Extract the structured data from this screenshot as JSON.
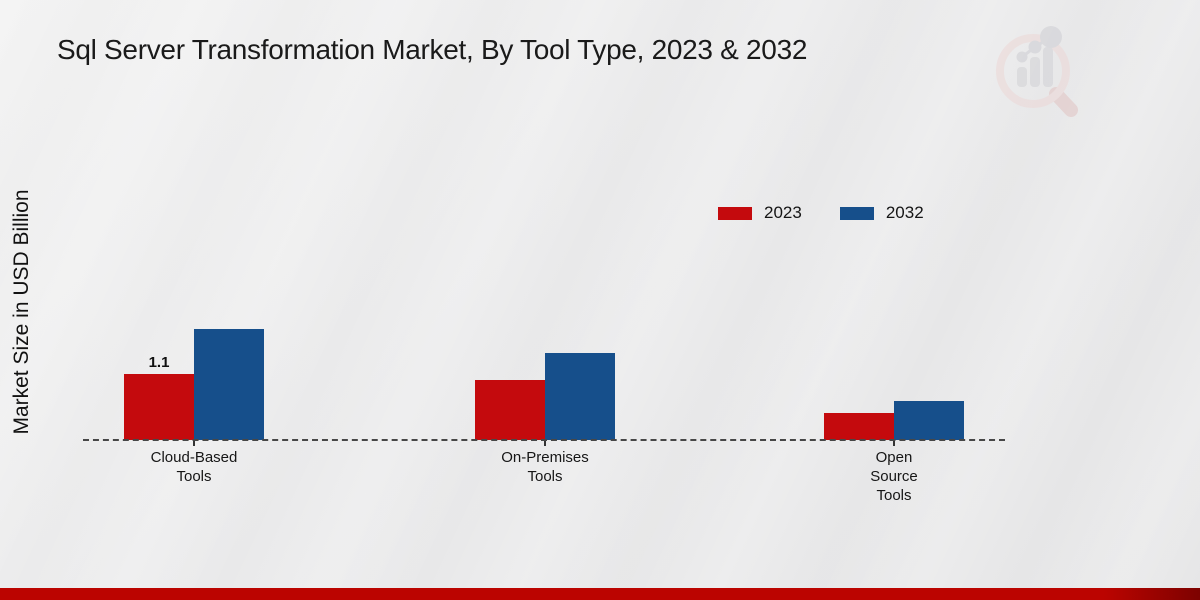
{
  "title": "Sql Server Transformation Market, By Tool Type, 2023 & 2032",
  "ylabel": "Market Size in USD Billion",
  "watermark": "magnifier-bar-chart-logo",
  "colors": {
    "series_2023": "#c40a0d",
    "series_2032": "#164f8b",
    "bottom_strip": "#bb0400",
    "bottom_strip_dark_edge": "#7d0200",
    "baseline": "#474747",
    "background": "#e9e9ea",
    "title_text": "#1a1a1a"
  },
  "legend": {
    "items": [
      {
        "label": "2023",
        "color": "#c40a0d"
      },
      {
        "label": "2032",
        "color": "#164f8b"
      }
    ]
  },
  "chart_data": {
    "type": "bar",
    "title": "Sql Server Transformation Market, By Tool Type, 2023 & 2032",
    "xlabel": "",
    "ylabel": "Market Size in USD Billion",
    "categories": [
      "Cloud-Based\nTools",
      "On-Premises\nTools",
      "Open\nSource\nTools"
    ],
    "series": [
      {
        "name": "2023",
        "color": "#c40a0d",
        "values": [
          1.1,
          1.0,
          0.45
        ]
      },
      {
        "name": "2032",
        "color": "#164f8b",
        "values": [
          1.85,
          1.45,
          0.65
        ]
      }
    ],
    "annotations": [
      {
        "text": "1.1",
        "series": 0,
        "category": 0
      }
    ],
    "ylim": [
      0,
      2.4
    ],
    "grid": false,
    "legend_position": "upper-right-inside",
    "baseline_style": "dashed",
    "y_axis_ticks_visible": false
  }
}
